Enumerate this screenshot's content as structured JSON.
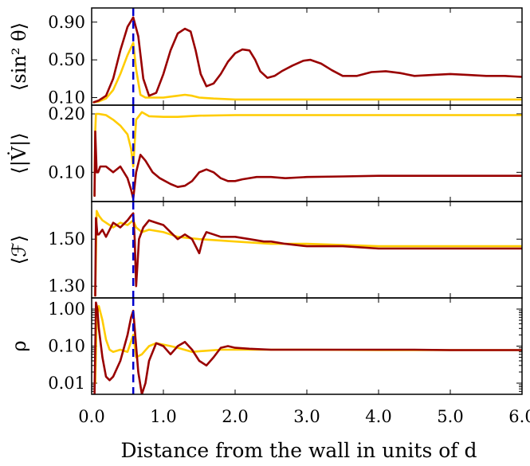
{
  "colors": {
    "dark_red": "#990000",
    "gold": "#ffcc00",
    "blue_dashed": "#0000cc"
  },
  "chart_data": {
    "type": "line",
    "xlabel": "Distance from the wall in units of d",
    "xticks": [
      "0.0",
      "1.0",
      "2.0",
      "3.0",
      "4.0",
      "5.0",
      "6.0"
    ],
    "xlim": [
      0,
      6
    ],
    "vertical_marker": {
      "x": 0.58,
      "style": "dashed",
      "color": "#0000cc"
    },
    "panels": [
      {
        "ylabel": "⟨sin² θ⟩",
        "ylim": [
          0.02,
          1.05
        ],
        "scale": "linear",
        "yticks": [
          "0.10",
          "0.50",
          "0.90"
        ],
        "ytick_values": [
          0.1,
          0.5,
          0.9
        ],
        "series": [
          {
            "color": "#990000",
            "x": [
              0.03,
              0.1,
              0.2,
              0.3,
              0.4,
              0.5,
              0.58,
              0.65,
              0.72,
              0.8,
              0.9,
              1.0,
              1.1,
              1.2,
              1.3,
              1.38,
              1.45,
              1.52,
              1.6,
              1.7,
              1.8,
              1.9,
              2.0,
              2.1,
              2.2,
              2.28,
              2.35,
              2.45,
              2.55,
              2.65,
              2.8,
              2.95,
              3.05,
              3.2,
              3.35,
              3.5,
              3.7,
              3.9,
              4.1,
              4.3,
              4.5,
              4.75,
              5.0,
              5.25,
              5.5,
              5.75,
              6.0
            ],
            "y": [
              0.05,
              0.07,
              0.12,
              0.3,
              0.6,
              0.85,
              0.95,
              0.75,
              0.3,
              0.12,
              0.15,
              0.35,
              0.6,
              0.78,
              0.83,
              0.8,
              0.6,
              0.35,
              0.22,
              0.25,
              0.35,
              0.48,
              0.57,
              0.61,
              0.6,
              0.5,
              0.38,
              0.31,
              0.33,
              0.38,
              0.44,
              0.49,
              0.5,
              0.46,
              0.39,
              0.33,
              0.33,
              0.37,
              0.38,
              0.36,
              0.33,
              0.34,
              0.35,
              0.34,
              0.33,
              0.33,
              0.32
            ]
          },
          {
            "color": "#ffcc00",
            "x": [
              0.03,
              0.1,
              0.2,
              0.3,
              0.4,
              0.5,
              0.58,
              0.62,
              0.68,
              0.75,
              0.85,
              1.0,
              1.1,
              1.2,
              1.3,
              1.4,
              1.5,
              1.7,
              2.0,
              2.5,
              3.0,
              4.0,
              5.0,
              6.0
            ],
            "y": [
              0.05,
              0.06,
              0.09,
              0.18,
              0.35,
              0.55,
              0.68,
              0.4,
              0.13,
              0.1,
              0.1,
              0.1,
              0.11,
              0.12,
              0.13,
              0.12,
              0.1,
              0.09,
              0.08,
              0.08,
              0.08,
              0.08,
              0.08,
              0.08
            ]
          }
        ]
      },
      {
        "ylabel": "⟨|V̇|⟩",
        "ylim": [
          0.05,
          0.215
        ],
        "scale": "linear",
        "yticks": [
          "0.10",
          "0.20"
        ],
        "ytick_values": [
          0.1,
          0.2
        ],
        "series": [
          {
            "color": "#990000",
            "x": [
              0.04,
              0.05,
              0.07,
              0.09,
              0.12,
              0.2,
              0.3,
              0.4,
              0.5,
              0.55,
              0.58,
              0.62,
              0.68,
              0.75,
              0.85,
              0.95,
              1.1,
              1.2,
              1.3,
              1.4,
              1.5,
              1.6,
              1.7,
              1.8,
              1.9,
              2.0,
              2.1,
              2.3,
              2.5,
              2.7,
              3.0,
              3.5,
              4.0,
              4.5,
              5.0,
              5.5,
              6.0
            ],
            "y": [
              0.06,
              0.17,
              0.1,
              0.1,
              0.11,
              0.11,
              0.1,
              0.11,
              0.09,
              0.07,
              0.055,
              0.1,
              0.13,
              0.12,
              0.1,
              0.09,
              0.08,
              0.075,
              0.077,
              0.085,
              0.1,
              0.105,
              0.1,
              0.09,
              0.085,
              0.085,
              0.088,
              0.092,
              0.092,
              0.09,
              0.092,
              0.093,
              0.094,
              0.094,
              0.094,
              0.094,
              0.094
            ]
          },
          {
            "color": "#ffcc00",
            "x": [
              0.04,
              0.05,
              0.06,
              0.1,
              0.2,
              0.3,
              0.4,
              0.5,
              0.55,
              0.58,
              0.62,
              0.7,
              0.8,
              1.0,
              1.2,
              1.5,
              2.0,
              2.5,
              3.0,
              4.0,
              5.0,
              6.0
            ],
            "y": [
              0.06,
              0.17,
              0.2,
              0.2,
              0.198,
              0.19,
              0.18,
              0.165,
              0.14,
              0.11,
              0.19,
              0.203,
              0.196,
              0.195,
              0.195,
              0.197,
              0.198,
              0.198,
              0.198,
              0.198,
              0.198,
              0.198
            ]
          }
        ]
      },
      {
        "ylabel": "⟨ℱ⟩",
        "ylim": [
          1.25,
          1.66
        ],
        "scale": "linear",
        "yticks": [
          "1.30",
          "1.50"
        ],
        "ytick_values": [
          1.3,
          1.5
        ],
        "series": [
          {
            "color": "#990000",
            "x": [
              0.05,
              0.06,
              0.08,
              0.1,
              0.15,
              0.2,
              0.3,
              0.4,
              0.5,
              0.55,
              0.58,
              0.6,
              0.62,
              0.66,
              0.72,
              0.8,
              0.9,
              1.0,
              1.1,
              1.2,
              1.3,
              1.4,
              1.5,
              1.55,
              1.6,
              1.7,
              1.8,
              2.0,
              2.2,
              2.4,
              2.5,
              2.7,
              3.0,
              3.5,
              4.0,
              4.5,
              5.0,
              5.5,
              6.0
            ],
            "y": [
              1.26,
              1.59,
              1.52,
              1.52,
              1.54,
              1.51,
              1.57,
              1.55,
              1.58,
              1.6,
              1.61,
              1.5,
              1.3,
              1.5,
              1.55,
              1.58,
              1.57,
              1.56,
              1.53,
              1.5,
              1.52,
              1.5,
              1.44,
              1.5,
              1.53,
              1.52,
              1.51,
              1.51,
              1.5,
              1.49,
              1.49,
              1.48,
              1.47,
              1.47,
              1.46,
              1.46,
              1.46,
              1.46,
              1.46
            ]
          },
          {
            "color": "#ffcc00",
            "x": [
              0.05,
              0.07,
              0.1,
              0.15,
              0.2,
              0.3,
              0.4,
              0.5,
              0.58,
              0.62,
              0.7,
              0.8,
              1.0,
              1.2,
              1.5,
              2.0,
              2.5,
              3.0,
              4.0,
              5.0,
              6.0
            ],
            "y": [
              1.26,
              1.62,
              1.6,
              1.58,
              1.57,
              1.55,
              1.57,
              1.56,
              1.58,
              1.55,
              1.53,
              1.54,
              1.53,
              1.51,
              1.5,
              1.49,
              1.48,
              1.48,
              1.47,
              1.47,
              1.47
            ]
          }
        ]
      },
      {
        "ylabel": "ρ",
        "ylim": [
          0.005,
          2.0
        ],
        "scale": "log",
        "yticks": [
          "0.01",
          "0.10",
          "1.00"
        ],
        "ytick_values": [
          0.01,
          0.1,
          1.0
        ],
        "series": [
          {
            "color": "#990000",
            "x": [
              0.04,
              0.06,
              0.08,
              0.1,
              0.15,
              0.2,
              0.25,
              0.3,
              0.4,
              0.5,
              0.55,
              0.58,
              0.62,
              0.65,
              0.7,
              0.75,
              0.8,
              0.9,
              1.0,
              1.1,
              1.2,
              1.3,
              1.4,
              1.5,
              1.6,
              1.7,
              1.8,
              1.9,
              2.0,
              2.2,
              2.5,
              3.0,
              3.5,
              4.0,
              4.5,
              5.0,
              5.5,
              6.0
            ],
            "y": [
              0.005,
              1.5,
              1.0,
              0.3,
              0.05,
              0.015,
              0.012,
              0.015,
              0.04,
              0.2,
              0.6,
              0.9,
              0.1,
              0.02,
              0.005,
              0.01,
              0.04,
              0.12,
              0.1,
              0.06,
              0.1,
              0.13,
              0.08,
              0.04,
              0.03,
              0.05,
              0.09,
              0.1,
              0.09,
              0.085,
              0.08,
              0.08,
              0.08,
              0.08,
              0.08,
              0.078,
              0.078,
              0.078
            ]
          },
          {
            "color": "#ffcc00",
            "x": [
              0.05,
              0.07,
              0.1,
              0.15,
              0.2,
              0.25,
              0.3,
              0.4,
              0.5,
              0.58,
              0.62,
              0.7,
              0.8,
              0.9,
              1.0,
              1.1,
              1.2,
              1.4,
              1.6,
              1.8,
              2.0,
              2.5,
              3.0,
              4.0,
              5.0,
              6.0
            ],
            "y": [
              0.01,
              0.6,
              1.2,
              0.5,
              0.15,
              0.08,
              0.07,
              0.08,
              0.07,
              0.2,
              0.05,
              0.06,
              0.1,
              0.12,
              0.11,
              0.1,
              0.09,
              0.07,
              0.075,
              0.08,
              0.08,
              0.08,
              0.08,
              0.078,
              0.078,
              0.078
            ]
          }
        ]
      }
    ]
  }
}
